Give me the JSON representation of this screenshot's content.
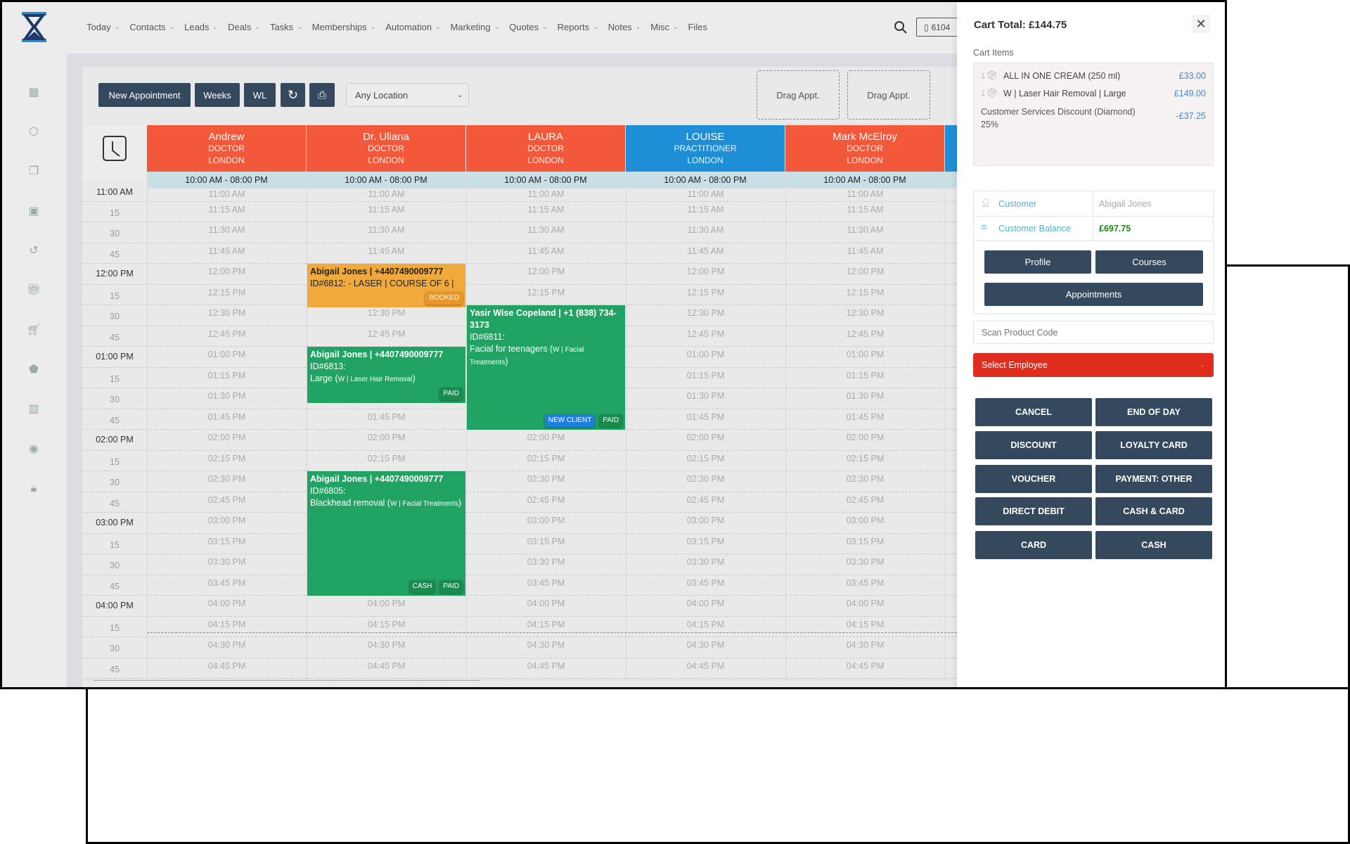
{
  "nav": {
    "items": [
      "Today",
      "Contacts",
      "Leads",
      "Deals",
      "Tasks",
      "Memberships",
      "Automation",
      "Marketing",
      "Quotes",
      "Reports",
      "Notes",
      "Misc",
      "Files"
    ],
    "phone": "6104"
  },
  "sidebar": {
    "icons": [
      "calendar-icon",
      "box-icon",
      "copy-icon",
      "calendar-alt-icon",
      "history-icon",
      "gift-icon",
      "cart-icon",
      "tag-icon",
      "report-icon",
      "user-circle-icon",
      "lock-icon"
    ]
  },
  "toolbar": {
    "new_appointment": "New Appointment",
    "weeks": "Weeks",
    "wl": "WL",
    "location": "Any Location",
    "drag1": "Drag Appt.",
    "drag2": "Drag Appt."
  },
  "colors": {
    "doctor": "#f4583a",
    "practitioner": "#1e8fd6",
    "paid": "#21a463",
    "booked": "#f2a93b",
    "button": "#34495e",
    "employee": "#df2c1d"
  },
  "columns": [
    {
      "name": "Andrew",
      "role": "DOCTOR",
      "location": "LONDON",
      "hours": "10:00 AM - 08:00 PM",
      "color": "#f4583a"
    },
    {
      "name": "Dr. Uliana",
      "role": "DOCTOR",
      "location": "LONDON",
      "hours": "10:00 AM - 08:00 PM",
      "color": "#f4583a"
    },
    {
      "name": "LAURA",
      "role": "DOCTOR",
      "location": "LONDON",
      "hours": "10:00 AM - 08:00 PM",
      "color": "#f4583a"
    },
    {
      "name": "LOUISE",
      "role": "PRACTITIONER",
      "location": "LONDON",
      "hours": "10:00 AM - 08:00 PM",
      "color": "#1e8fd6"
    },
    {
      "name": "Mark McElroy",
      "role": "DOCTOR",
      "location": "LONDON",
      "hours": "10:00 AM - 08:00 PM",
      "color": "#f4583a"
    },
    {
      "name": "",
      "role": "",
      "location": "",
      "hours": "",
      "color": "#1e8fd6"
    }
  ],
  "slots": [
    {
      "side": "11:00 AM",
      "cell": "11:00 AM"
    },
    {
      "side": "15",
      "cell": "11:15 AM"
    },
    {
      "side": "30",
      "cell": "11:30 AM"
    },
    {
      "side": "45",
      "cell": "11:45 AM"
    },
    {
      "side": "12:00 PM",
      "cell": "12:00 PM"
    },
    {
      "side": "15",
      "cell": "12:15 PM"
    },
    {
      "side": "30",
      "cell": "12:30 PM"
    },
    {
      "side": "45",
      "cell": "12:45 PM"
    },
    {
      "side": "01:00 PM",
      "cell": "01:00 PM"
    },
    {
      "side": "15",
      "cell": "01:15 PM"
    },
    {
      "side": "30",
      "cell": "01:30 PM"
    },
    {
      "side": "45",
      "cell": "01:45 PM"
    },
    {
      "side": "02:00 PM",
      "cell": "02:00 PM"
    },
    {
      "side": "15",
      "cell": "02:15 PM"
    },
    {
      "side": "30",
      "cell": "02:30 PM"
    },
    {
      "side": "45",
      "cell": "02:45 PM"
    },
    {
      "side": "03:00 PM",
      "cell": "03:00 PM"
    },
    {
      "side": "15",
      "cell": "03:15 PM"
    },
    {
      "side": "30",
      "cell": "03:30 PM"
    },
    {
      "side": "45",
      "cell": "03:45 PM"
    },
    {
      "side": "04:00 PM",
      "cell": "04:00 PM"
    },
    {
      "side": "15",
      "cell": "04:15 PM"
    },
    {
      "side": "30",
      "cell": "04:30 PM"
    },
    {
      "side": "45",
      "cell": "04:45 PM"
    }
  ],
  "appointments": [
    {
      "column": 1,
      "start_slot": 4,
      "slots": 1.3,
      "status": "booked",
      "title": "Abigail Jones | +4407490009777",
      "id": "ID#6812: - LASER | COURSE OF 6 |",
      "service": "",
      "category": "",
      "tags": [
        "BOOKED"
      ]
    },
    {
      "column": 1,
      "start_slot": 8,
      "slots": 2,
      "status": "paid",
      "title": "Abigail Jones | +4407490009777",
      "id": "ID#6813:",
      "service": "Large",
      "category": "W | Laser Hair Removal",
      "tags": [
        "PAID"
      ]
    },
    {
      "column": 2,
      "start_slot": 6,
      "slots": 6,
      "status": "paid",
      "title": "Yasir Wise Copeland | +1 (838) 734-3173",
      "id": "ID#6811:",
      "service": "Facial for teenagers",
      "category": "W | Facial Treatments",
      "tags": [
        "NEW CLIENT",
        "PAID"
      ]
    },
    {
      "column": 1,
      "start_slot": 14,
      "slots": 6,
      "status": "paid",
      "title": "Abigail Jones | +4407490009777",
      "id": "ID#6805:",
      "service": "Blackhead removal",
      "category": "W | Facial Treatments",
      "tags": [
        "CASH",
        "PAID"
      ]
    }
  ],
  "cart": {
    "total": "Cart Total: £144.75",
    "items_label": "Cart Items",
    "items": [
      {
        "qty": "1",
        "name": "ALL IN ONE CREAM (250 ml)",
        "price": "£33.00"
      },
      {
        "qty": "1",
        "name": "W | Laser Hair Removal | Large",
        "price": "£149.00"
      }
    ],
    "discount": {
      "name": "Customer Services Discount (Diamond)",
      "pct": "25%",
      "amount": "-£37.25"
    },
    "customer_label": "Customer",
    "customer_value": "Abigail Jones",
    "balance_label": "Customer Balance",
    "balance_value": "£697.75",
    "profile": "Profile",
    "courses": "Courses",
    "appointments": "Appointments",
    "scan_placeholder": "Scan Product Code",
    "employee": "Select Employee",
    "actions": [
      "CANCEL",
      "END OF DAY",
      "DISCOUNT",
      "LOYALTY CARD",
      "VOUCHER",
      "PAYMENT: OTHER",
      "DIRECT DEBIT",
      "CASH & CARD",
      "CARD",
      "CASH"
    ]
  }
}
